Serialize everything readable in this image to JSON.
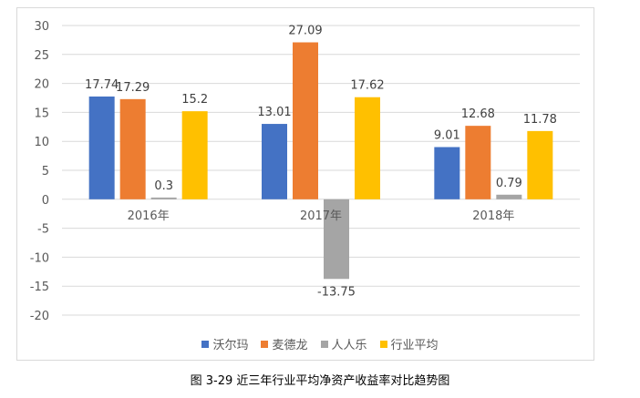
{
  "chart_data": {
    "type": "bar",
    "categories": [
      "2016年",
      "2017年",
      "2018年"
    ],
    "series": [
      {
        "name": "沃尔玛",
        "color": "#4472c4",
        "values": [
          17.74,
          13.01,
          9.01
        ],
        "labels": [
          "17.74",
          "13.01",
          "9.01"
        ]
      },
      {
        "name": "麦德龙",
        "color": "#ed7d31",
        "values": [
          17.29,
          27.09,
          12.68
        ],
        "labels": [
          "17.29",
          "27.09",
          "12.68"
        ]
      },
      {
        "name": "人人乐",
        "color": "#a5a5a5",
        "values": [
          0.3,
          -13.75,
          0.79
        ],
        "labels": [
          "0.3",
          "-13.75",
          "0.79"
        ]
      },
      {
        "name": "行业平均",
        "color": "#ffc000",
        "values": [
          15.2,
          17.62,
          11.78
        ],
        "labels": [
          "15.2",
          "17.62",
          "11.78"
        ]
      }
    ],
    "ylim": [
      -20,
      30
    ],
    "yticks": [
      "-20",
      "-15",
      "-10",
      "-5",
      "0",
      "5",
      "10",
      "15",
      "20",
      "25",
      "30"
    ],
    "ytick_values": [
      -20,
      -15,
      -10,
      -5,
      0,
      5,
      10,
      15,
      20,
      25,
      30
    ],
    "grid": true,
    "legend_position": "bottom",
    "title": "",
    "xlabel": "",
    "ylabel": ""
  },
  "caption": "图 3-29  近三年行业平均净资产收益率对比趋势图"
}
